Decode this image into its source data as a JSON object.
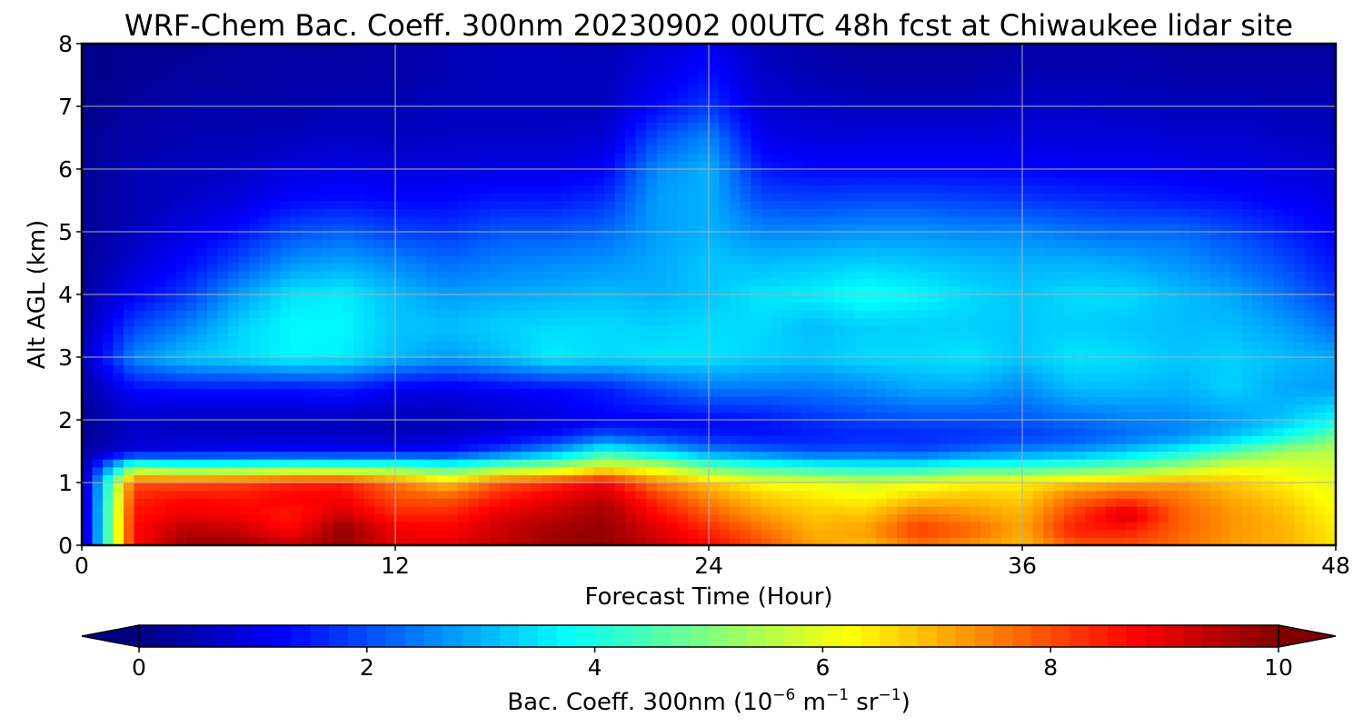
{
  "chart_data": {
    "type": "heatmap",
    "title": "WRF-Chem Bac. Coeff. 300nm  20230902 00UTC 48h fcst at Chiwaukee lidar site",
    "xlabel": "Forecast Time (Hour)",
    "ylabel": "Alt AGL (km)",
    "xlim": [
      0,
      48
    ],
    "ylim": [
      0,
      8
    ],
    "xticks": [
      "0",
      "12",
      "24",
      "36",
      "48"
    ],
    "yticks": [
      "0",
      "1",
      "2",
      "3",
      "4",
      "5",
      "6",
      "7",
      "8"
    ],
    "grid": true,
    "colormap": "jet",
    "x": [
      0,
      2,
      4,
      6,
      8,
      10,
      12,
      14,
      16,
      18,
      20,
      22,
      24,
      26,
      28,
      30,
      32,
      34,
      36,
      38,
      40,
      42,
      44,
      46,
      48
    ],
    "y": [
      0,
      0.25,
      0.5,
      0.75,
      1,
      1.25,
      1.5,
      1.75,
      2,
      2.5,
      3,
      3.5,
      4,
      4.5,
      5,
      5.5,
      6,
      6.5,
      7,
      7.5,
      8
    ],
    "values": [
      [
        0.3,
        8.7,
        9.7,
        9.7,
        9.3,
        9.7,
        9.0,
        9.0,
        9.3,
        9.6,
        9.8,
        9.3,
        8.7,
        8.0,
        7.2,
        6.9,
        7.6,
        7.3,
        6.9,
        7.9,
        8.0,
        7.7,
        7.2,
        7.0,
        6.5
      ],
      [
        0.3,
        8.7,
        9.5,
        9.3,
        8.7,
        9.9,
        8.9,
        8.8,
        9.3,
        9.7,
        9.8,
        9.1,
        8.4,
        7.7,
        7.0,
        7.2,
        8.2,
        7.8,
        7.1,
        8.5,
        8.5,
        7.8,
        7.3,
        7.0,
        6.4
      ],
      [
        0.3,
        8.6,
        8.9,
        8.8,
        8.5,
        9.2,
        8.4,
        8.4,
        9.0,
        9.3,
        9.7,
        8.7,
        7.9,
        7.2,
        6.8,
        6.8,
        7.6,
        7.3,
        7.0,
        8.2,
        9.2,
        7.8,
        7.3,
        6.9,
        6.3
      ],
      [
        0.3,
        8.4,
        8.7,
        8.6,
        8.8,
        8.8,
        8.0,
        7.9,
        8.5,
        9.0,
        9.4,
        8.3,
        7.4,
        6.8,
        6.5,
        6.3,
        6.8,
        6.9,
        6.7,
        7.7,
        8.1,
        7.6,
        7.1,
        6.7,
        6.1
      ],
      [
        0.3,
        8.0,
        8.0,
        8.1,
        8.4,
        8.5,
        7.6,
        6.8,
        7.9,
        8.3,
        8.8,
        7.5,
        6.8,
        6.2,
        6.1,
        5.8,
        6.0,
        6.3,
        6.4,
        6.8,
        7.0,
        7.2,
        6.8,
        6.4,
        6.0
      ],
      [
        0.3,
        5.0,
        4.6,
        4.7,
        4.9,
        4.8,
        4.8,
        4.3,
        5.0,
        5.3,
        6.2,
        5.8,
        4.8,
        4.3,
        4.0,
        3.9,
        3.9,
        4.3,
        4.3,
        4.5,
        4.8,
        5.3,
        6.0,
        6.0,
        5.8
      ],
      [
        0.3,
        1.0,
        1.1,
        1.2,
        1.2,
        1.2,
        1.3,
        1.4,
        2.0,
        2.8,
        4.0,
        3.4,
        2.6,
        2.3,
        2.0,
        2.1,
        2.0,
        2.3,
        2.6,
        2.8,
        3.2,
        3.8,
        4.5,
        5.3,
        5.6
      ],
      [
        0.2,
        0.7,
        0.7,
        0.7,
        0.7,
        0.7,
        0.6,
        0.7,
        1.0,
        1.4,
        2.1,
        1.8,
        1.5,
        1.4,
        1.5,
        1.6,
        1.6,
        1.7,
        1.8,
        2.0,
        2.3,
        2.6,
        3.1,
        3.8,
        4.8
      ],
      [
        0.2,
        0.7,
        0.6,
        0.6,
        0.6,
        0.6,
        0.5,
        0.5,
        0.7,
        0.9,
        1.2,
        1.2,
        1.3,
        1.4,
        1.7,
        1.9,
        2.0,
        2.0,
        2.1,
        2.3,
        2.5,
        2.6,
        2.8,
        3.2,
        3.8
      ],
      [
        0.3,
        1.3,
        1.4,
        1.4,
        1.4,
        1.5,
        1.1,
        1.0,
        1.2,
        1.3,
        1.5,
        2.0,
        2.4,
        2.4,
        2.4,
        2.6,
        2.9,
        2.9,
        2.6,
        3.1,
        3.1,
        3.0,
        3.3,
        2.9,
        2.8
      ],
      [
        0.5,
        2.6,
        3.2,
        3.4,
        3.7,
        3.6,
        3.1,
        2.8,
        3.1,
        3.6,
        3.4,
        3.5,
        3.5,
        3.3,
        3.2,
        3.4,
        3.4,
        3.5,
        3.2,
        3.5,
        3.4,
        3.2,
        3.3,
        3.1,
        2.9
      ],
      [
        0.4,
        1.9,
        2.5,
        3.3,
        3.7,
        3.7,
        3.2,
        3.1,
        3.3,
        3.4,
        3.4,
        3.3,
        3.4,
        3.4,
        3.1,
        3.3,
        3.3,
        3.3,
        3.2,
        3.3,
        3.2,
        3.1,
        3.1,
        2.8,
        2.3
      ],
      [
        0.3,
        1.2,
        1.8,
        2.8,
        3.5,
        3.6,
        3.1,
        2.8,
        2.9,
        3.0,
        3.1,
        3.0,
        3.2,
        3.5,
        3.6,
        3.9,
        3.7,
        3.4,
        3.2,
        3.4,
        3.4,
        3.1,
        2.9,
        2.4,
        1.8
      ],
      [
        0.2,
        0.8,
        1.3,
        2.0,
        2.7,
        2.9,
        2.6,
        2.3,
        2.5,
        2.6,
        2.7,
        2.9,
        3.2,
        3.1,
        3.2,
        3.3,
        3.2,
        3.1,
        3.0,
        3.0,
        2.9,
        2.7,
        2.4,
        2.0,
        1.4
      ],
      [
        0.2,
        0.6,
        1.0,
        1.4,
        2.0,
        2.2,
        1.9,
        1.8,
        2.1,
        2.1,
        2.3,
        2.8,
        3.0,
        2.6,
        2.6,
        2.7,
        2.7,
        2.6,
        2.6,
        2.4,
        2.3,
        2.3,
        2.0,
        1.6,
        1.2
      ],
      [
        0.2,
        0.5,
        0.7,
        0.9,
        1.3,
        1.4,
        1.3,
        1.3,
        1.5,
        1.5,
        1.7,
        2.8,
        3.0,
        2.0,
        1.9,
        2.0,
        2.0,
        1.9,
        1.8,
        1.7,
        1.6,
        1.5,
        1.4,
        1.2,
        1.0
      ],
      [
        0.2,
        0.5,
        0.6,
        0.7,
        0.9,
        1.0,
        0.9,
        0.9,
        1.0,
        1.0,
        1.2,
        2.6,
        3.0,
        1.5,
        1.3,
        1.3,
        1.3,
        1.3,
        1.3,
        1.2,
        1.2,
        1.1,
        1.0,
        0.9,
        0.8
      ],
      [
        0.2,
        0.4,
        0.5,
        0.5,
        0.6,
        0.7,
        0.6,
        0.7,
        0.7,
        0.7,
        0.8,
        2.0,
        2.6,
        1.1,
        0.9,
        0.9,
        0.9,
        0.9,
        0.9,
        0.9,
        0.9,
        0.8,
        0.8,
        0.7,
        0.6
      ],
      [
        0.1,
        0.3,
        0.4,
        0.4,
        0.4,
        0.5,
        0.5,
        0.6,
        0.6,
        0.6,
        0.6,
        1.3,
        1.8,
        0.8,
        0.7,
        0.6,
        0.6,
        0.6,
        0.7,
        0.7,
        0.6,
        0.6,
        0.6,
        0.5,
        0.5
      ],
      [
        0.1,
        0.2,
        0.3,
        0.3,
        0.4,
        0.4,
        0.4,
        0.5,
        0.6,
        0.6,
        0.6,
        1.0,
        1.4,
        0.7,
        0.5,
        0.4,
        0.4,
        0.4,
        0.5,
        0.5,
        0.5,
        0.4,
        0.4,
        0.4,
        0.4
      ],
      [
        0.1,
        0.2,
        0.2,
        0.3,
        0.3,
        0.3,
        0.4,
        0.5,
        0.6,
        0.6,
        0.5,
        0.8,
        1.1,
        0.6,
        0.4,
        0.3,
        0.3,
        0.3,
        0.4,
        0.4,
        0.4,
        0.3,
        0.3,
        0.3,
        0.3
      ]
    ],
    "colorbar": {
      "min": 0,
      "max": 10,
      "levels": 60,
      "extend": "both",
      "ticks": [
        "0",
        "2",
        "4",
        "6",
        "8",
        "10"
      ],
      "label_main": "Bac. Coeff. 300nm  (10",
      "label_exp1": "−6",
      "label_mid": " m",
      "label_exp2": "−1",
      "label_mid2": " sr",
      "label_exp3": "−1",
      "label_end": ")"
    }
  }
}
